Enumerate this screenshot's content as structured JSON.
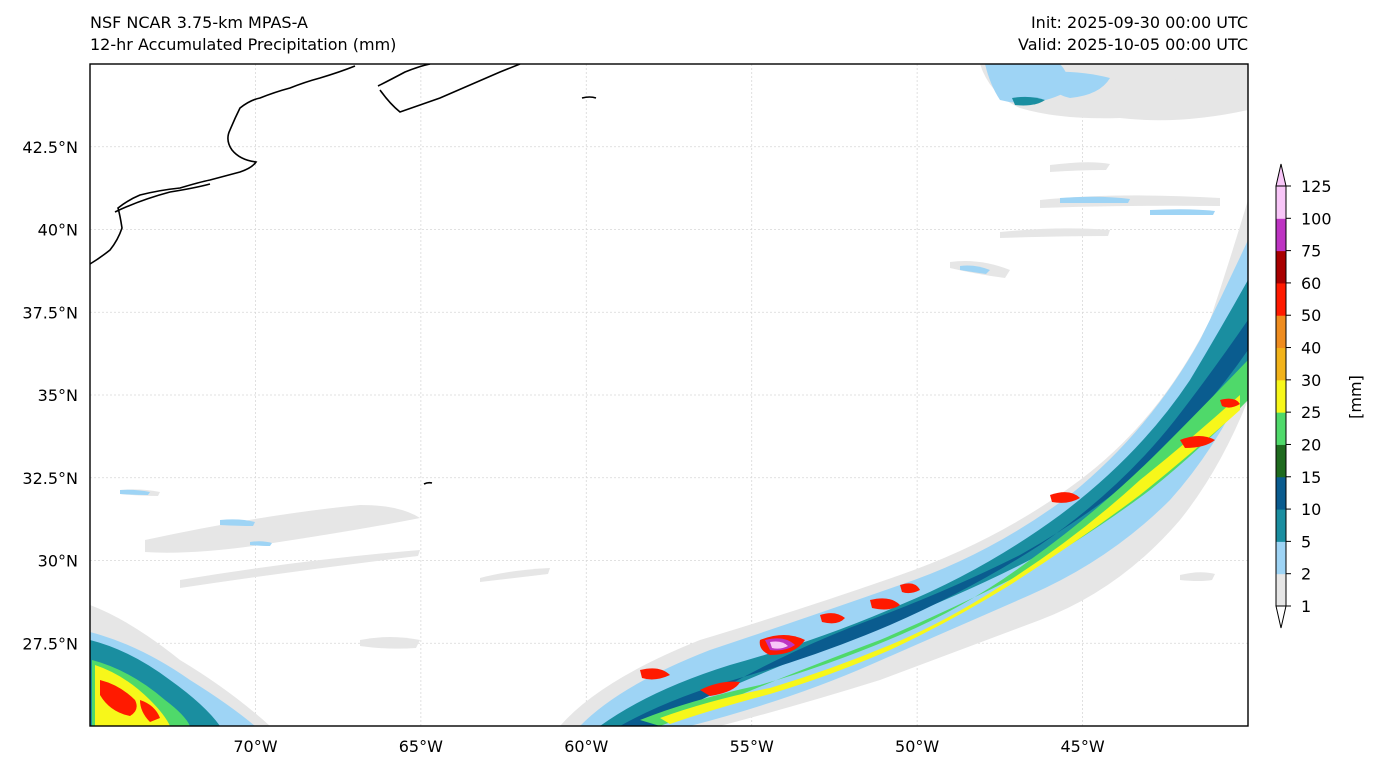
{
  "header": {
    "model": "NSF NCAR 3.75-km MPAS-A",
    "field": "12-hr Accumulated Precipitation (mm)",
    "init": "Init: 2025-09-30 00:00 UTC",
    "valid": "Valid: 2025-10-05 00:00 UTC"
  },
  "axes": {
    "lon_ticks": [
      "70°W",
      "65°W",
      "60°W",
      "55°W",
      "50°W",
      "45°W"
    ],
    "lat_ticks": [
      "42.5°N",
      "40°N",
      "37.5°N",
      "35°N",
      "32.5°N",
      "30°N",
      "27.5°N"
    ],
    "lon_values": [
      -70,
      -65,
      -60,
      -55,
      -50,
      -45
    ],
    "lat_values": [
      42.5,
      40,
      37.5,
      35,
      32.5,
      30,
      27.5
    ],
    "lon_range": [
      -75,
      -40
    ],
    "lat_range": [
      25,
      45
    ]
  },
  "colorbar": {
    "unit_label": "[mm]",
    "levels": [
      "1",
      "2",
      "5",
      "10",
      "15",
      "20",
      "25",
      "30",
      "40",
      "50",
      "60",
      "75",
      "100",
      "125"
    ],
    "colors": [
      "#e6e6e6",
      "#9ed4f5",
      "#1a8ea0",
      "#0a5c8f",
      "#1f6b1f",
      "#4fd96a",
      "#f7f71a",
      "#f2b31a",
      "#ee8c1f",
      "#ff1a00",
      "#a80000",
      "#bd34c2",
      "#f8c6f8"
    ]
  }
}
